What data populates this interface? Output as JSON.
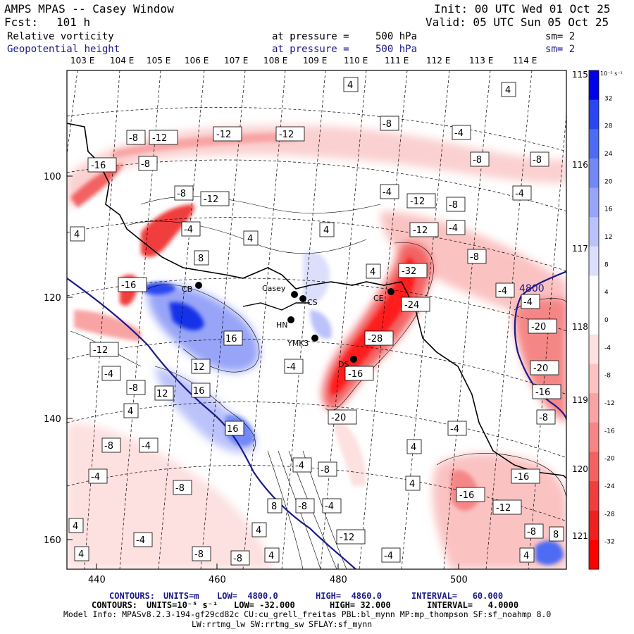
{
  "header": {
    "title": "AMPS MPAS -- Casey Window",
    "forecast_label": "Fcst:",
    "forecast_hours": "101 h",
    "init": "Init: 00 UTC Wed 01 Oct 25",
    "valid": "Valid: 05 UTC Sun 05 Oct 25"
  },
  "fields": [
    {
      "name": "Relative vorticity",
      "level_label": "at pressure =",
      "level": "500 hPa",
      "smooth": "sm= 2"
    },
    {
      "name": "Geopotential height",
      "level_label": "at pressure =",
      "level": "500 hPa",
      "smooth": "sm= 2"
    }
  ],
  "lon_labels": [
    "103 E",
    "104 E",
    "105 E",
    "106 E",
    "107 E",
    "108 E",
    "109 E",
    "110 E",
    "111 E",
    "112 E",
    "113 E",
    "114 E",
    "115 E",
    "116 E",
    "117 E",
    "118 E",
    "119 E",
    "120 E",
    "121 E"
  ],
  "x_ticks": [
    "440",
    "460",
    "480",
    "500"
  ],
  "y_ticks": [
    "100",
    "120",
    "140",
    "160"
  ],
  "stations": [
    "Casey",
    "CS",
    "HN",
    "YMK3",
    "CE",
    "DS",
    "CB"
  ],
  "height_contour_label": "4800",
  "colorbar": {
    "unit": "10⁻⁵ s⁻¹",
    "labels": [
      "32",
      "28",
      "24",
      "20",
      "16",
      "12",
      "8",
      "4",
      "0",
      "-4",
      "-8",
      "-12",
      "-16",
      "-20",
      "-24",
      "-28",
      "-32"
    ],
    "colors": [
      "#0000e8",
      "#2a46f0",
      "#4e6cf3",
      "#7288f5",
      "#97a4f7",
      "#bbc2fa",
      "#dcdffc",
      "#ffffff",
      "#ffffff",
      "#fde0e0",
      "#fbc2c2",
      "#f8a4a4",
      "#f58686",
      "#f36262",
      "#f03e3e",
      "#ee2020",
      "#ff0000"
    ]
  },
  "contour_labels": [
    "-4",
    "-8",
    "-12",
    "-16",
    "-20",
    "-24",
    "-28",
    "-32",
    "4",
    "8",
    "12",
    "16"
  ],
  "footer": {
    "line1": {
      "prefix": "CONTOURS:",
      "units": "UNITS=m",
      "low": "LOW=  4800.0",
      "high": "HIGH=  4860.0",
      "interval": "INTERVAL=   60.000"
    },
    "line2": {
      "prefix": "CONTOURS:",
      "units": "UNITS=10⁻⁵ s⁻¹",
      "low": "LOW= -32.000",
      "high": "HIGH= 32.000",
      "interval": "INTERVAL=   4.0000"
    },
    "model_info": "Model Info: MPASv8.2.3-194-gf29cd82c CU:cu_grell_freitas PBL:bl_mynn MP:mp_thompson SF:sf_noahmp 8.0",
    "model_info2": "LW:rrtmg_lw SW:rrtmg_sw SFLAY:sf_mynn"
  }
}
